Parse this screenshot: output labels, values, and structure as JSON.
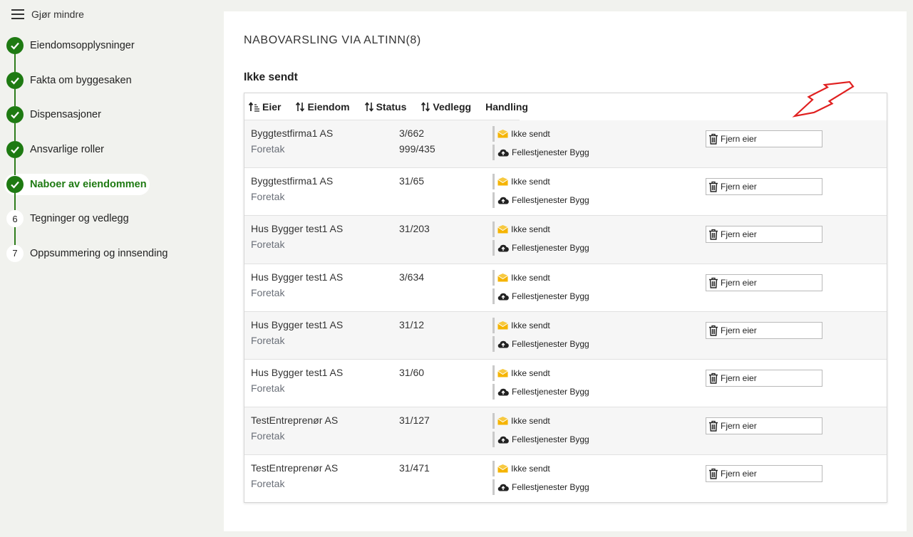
{
  "sidebar": {
    "toggle_label": "Gjør mindre",
    "steps": [
      {
        "label": "Eiendomsopplysninger",
        "status": "done"
      },
      {
        "label": "Fakta om byggesaken",
        "status": "done"
      },
      {
        "label": "Dispensasjoner",
        "status": "done"
      },
      {
        "label": "Ansvarlige roller",
        "status": "done"
      },
      {
        "label": "Naboer av eiendommen",
        "status": "active"
      },
      {
        "label": "Tegninger og vedlegg",
        "status": "todo",
        "number": "6"
      },
      {
        "label": "Oppsummering og innsending",
        "status": "todo",
        "number": "7"
      }
    ]
  },
  "main": {
    "title": "NABOVARSLING VIA ALTINN(8)",
    "section_title": "Ikke sendt",
    "columns": [
      "Eier",
      "Eiendom",
      "Status",
      "Vedlegg",
      "Handling"
    ],
    "rows": [
      {
        "owner": "Byggtestfirma1 AS",
        "type": "Foretak",
        "props": [
          "3/662",
          "999/435"
        ],
        "status": "Ikke sendt",
        "channel": "Fellestjenester Bygg",
        "action": "Fjern eier"
      },
      {
        "owner": "Byggtestfirma1 AS",
        "type": "Foretak",
        "props": [
          "31/65"
        ],
        "status": "Ikke sendt",
        "channel": "Fellestjenester Bygg",
        "action": "Fjern eier"
      },
      {
        "owner": "Hus Bygger test1 AS",
        "type": "Foretak",
        "props": [
          "31/203"
        ],
        "status": "Ikke sendt",
        "channel": "Fellestjenester Bygg",
        "action": "Fjern eier"
      },
      {
        "owner": "Hus Bygger test1 AS",
        "type": "Foretak",
        "props": [
          "3/634"
        ],
        "status": "Ikke sendt",
        "channel": "Fellestjenester Bygg",
        "action": "Fjern eier"
      },
      {
        "owner": "Hus Bygger test1 AS",
        "type": "Foretak",
        "props": [
          "31/12"
        ],
        "status": "Ikke sendt",
        "channel": "Fellestjenester Bygg",
        "action": "Fjern eier"
      },
      {
        "owner": "Hus Bygger test1 AS",
        "type": "Foretak",
        "props": [
          "31/60"
        ],
        "status": "Ikke sendt",
        "channel": "Fellestjenester Bygg",
        "action": "Fjern eier"
      },
      {
        "owner": "TestEntreprenør AS",
        "type": "Foretak",
        "props": [
          "31/127"
        ],
        "status": "Ikke sendt",
        "channel": "Fellestjenester Bygg",
        "action": "Fjern eier"
      },
      {
        "owner": "TestEntreprenør AS",
        "type": "Foretak",
        "props": [
          "31/471"
        ],
        "status": "Ikke sendt",
        "channel": "Fellestjenester Bygg",
        "action": "Fjern eier"
      }
    ]
  },
  "colors": {
    "accent_green": "#1e7a12",
    "envelope_yellow": "#f5b400",
    "annotation_red": "#e02020"
  },
  "icons": {
    "menu": "hamburger-icon",
    "step_done": "check-icon",
    "sort": "sort-icon",
    "status": "envelope-icon",
    "channel": "cloud-upload-icon",
    "remove": "trash-icon"
  }
}
